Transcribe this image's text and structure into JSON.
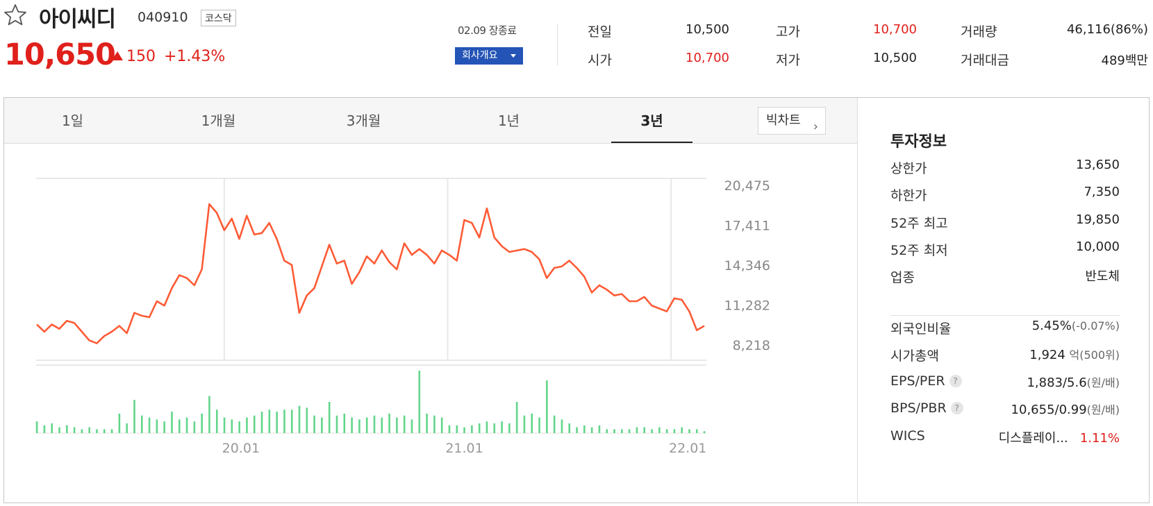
{
  "header": {
    "name": "아이씨디",
    "code": "040910",
    "market": "코스닥",
    "price": "10,650",
    "change_amount": "150",
    "change_percent": "+1.43%",
    "market_status": "02.09 장종료",
    "company_button": "회사개요",
    "quote": {
      "prev_label": "전일",
      "prev": "10,500",
      "high_label": "고가",
      "high": "10,700",
      "volume_label": "거래량",
      "volume": "46,116(86%)",
      "open_label": "시가",
      "open": "10,700",
      "low_label": "저가",
      "low": "10,500",
      "amount_label": "거래대금",
      "amount": "489백만"
    }
  },
  "tabs": [
    "1일",
    "1개월",
    "3개월",
    "1년",
    "3년"
  ],
  "active_tab": 4,
  "bigchart_label": "빅차트",
  "colors": {
    "up": "#e0201b",
    "down": "#1e5bd8",
    "line": "#ff5b36",
    "volume": "#63d58b"
  },
  "chart_data": {
    "type": "line",
    "y_ticks": [
      "20,475",
      "17,411",
      "14,346",
      "11,282",
      "8,218"
    ],
    "ylim": [
      8218,
      20475
    ],
    "x_ticks": [
      "20.01",
      "21.01",
      "22.01"
    ],
    "xlim": [
      0,
      36
    ],
    "x_tick_positions": [
      11,
      23,
      35
    ],
    "series": [
      {
        "values": [
          10400,
          9900,
          10400,
          10100,
          10650,
          10500,
          9900,
          9300,
          9100,
          9600,
          9900,
          10300,
          9800,
          11200,
          11000,
          10900,
          12000,
          11700,
          12900,
          13800,
          13600,
          13100,
          14200,
          18700,
          18100,
          16900,
          17700,
          16300,
          17900,
          16600,
          16700,
          17400,
          16300,
          14800,
          14500,
          11200,
          12400,
          12900,
          14400,
          15900,
          14600,
          14800,
          13200,
          14000,
          15100,
          14600,
          15500,
          14700,
          14200,
          16000,
          15200,
          15600,
          15200,
          14600,
          15500,
          15200,
          14800,
          17600,
          17400,
          16400,
          18400,
          16400,
          15800,
          15400,
          15500,
          15600,
          15400,
          14900,
          13600,
          14300,
          14400,
          14800,
          14300,
          13700,
          12600,
          13100,
          12800,
          12400,
          12500,
          12000,
          12000,
          12300,
          11700,
          11500,
          11300,
          12200,
          12100,
          11300,
          10000,
          10300
        ]
      }
    ],
    "volume_values": [
      6,
      4,
      5,
      3,
      4,
      3,
      2,
      3,
      2,
      2,
      2,
      10,
      5,
      17,
      9,
      8,
      7,
      6,
      11,
      7,
      8,
      6,
      10,
      19,
      12,
      8,
      7,
      6,
      8,
      9,
      11,
      12,
      11,
      12,
      12,
      14,
      13,
      9,
      8,
      16,
      9,
      10,
      8,
      7,
      8,
      9,
      8,
      10,
      8,
      9,
      7,
      32,
      10,
      9,
      8,
      4,
      4,
      3,
      4,
      5,
      6,
      5,
      6,
      5,
      16,
      9,
      10,
      8,
      27,
      9,
      7,
      5,
      3,
      4,
      3,
      4,
      2,
      2,
      2,
      2,
      3,
      3,
      2,
      3,
      2,
      2,
      3,
      2,
      2,
      1
    ]
  },
  "invest": {
    "title": "투자정보",
    "upper_label": "상한가",
    "upper": "13,650",
    "lower_label": "하한가",
    "lower": "7,350",
    "high52_label": "52주 최고",
    "high52": "19,850",
    "low52_label": "52주 최저",
    "low52": "10,000",
    "sector_label": "업종",
    "sector": "반도체",
    "foreign_label": "외국인비율",
    "foreign": "5.45%",
    "foreign_change": "(-0.07%)",
    "mcap_label": "시가총액",
    "mcap": "1,924",
    "mcap_unit": "억(500위)",
    "eps_label": "EPS/PER",
    "eps": "1,883/5.6",
    "eps_unit": "(원/배)",
    "bps_label": "BPS/PBR",
    "bps": "10,655/0.99",
    "bps_unit": "(원/배)",
    "wics_label": "WICS",
    "wics": "디스플레이...",
    "wics_pct": "1.11%",
    "help_glyph": "?"
  }
}
